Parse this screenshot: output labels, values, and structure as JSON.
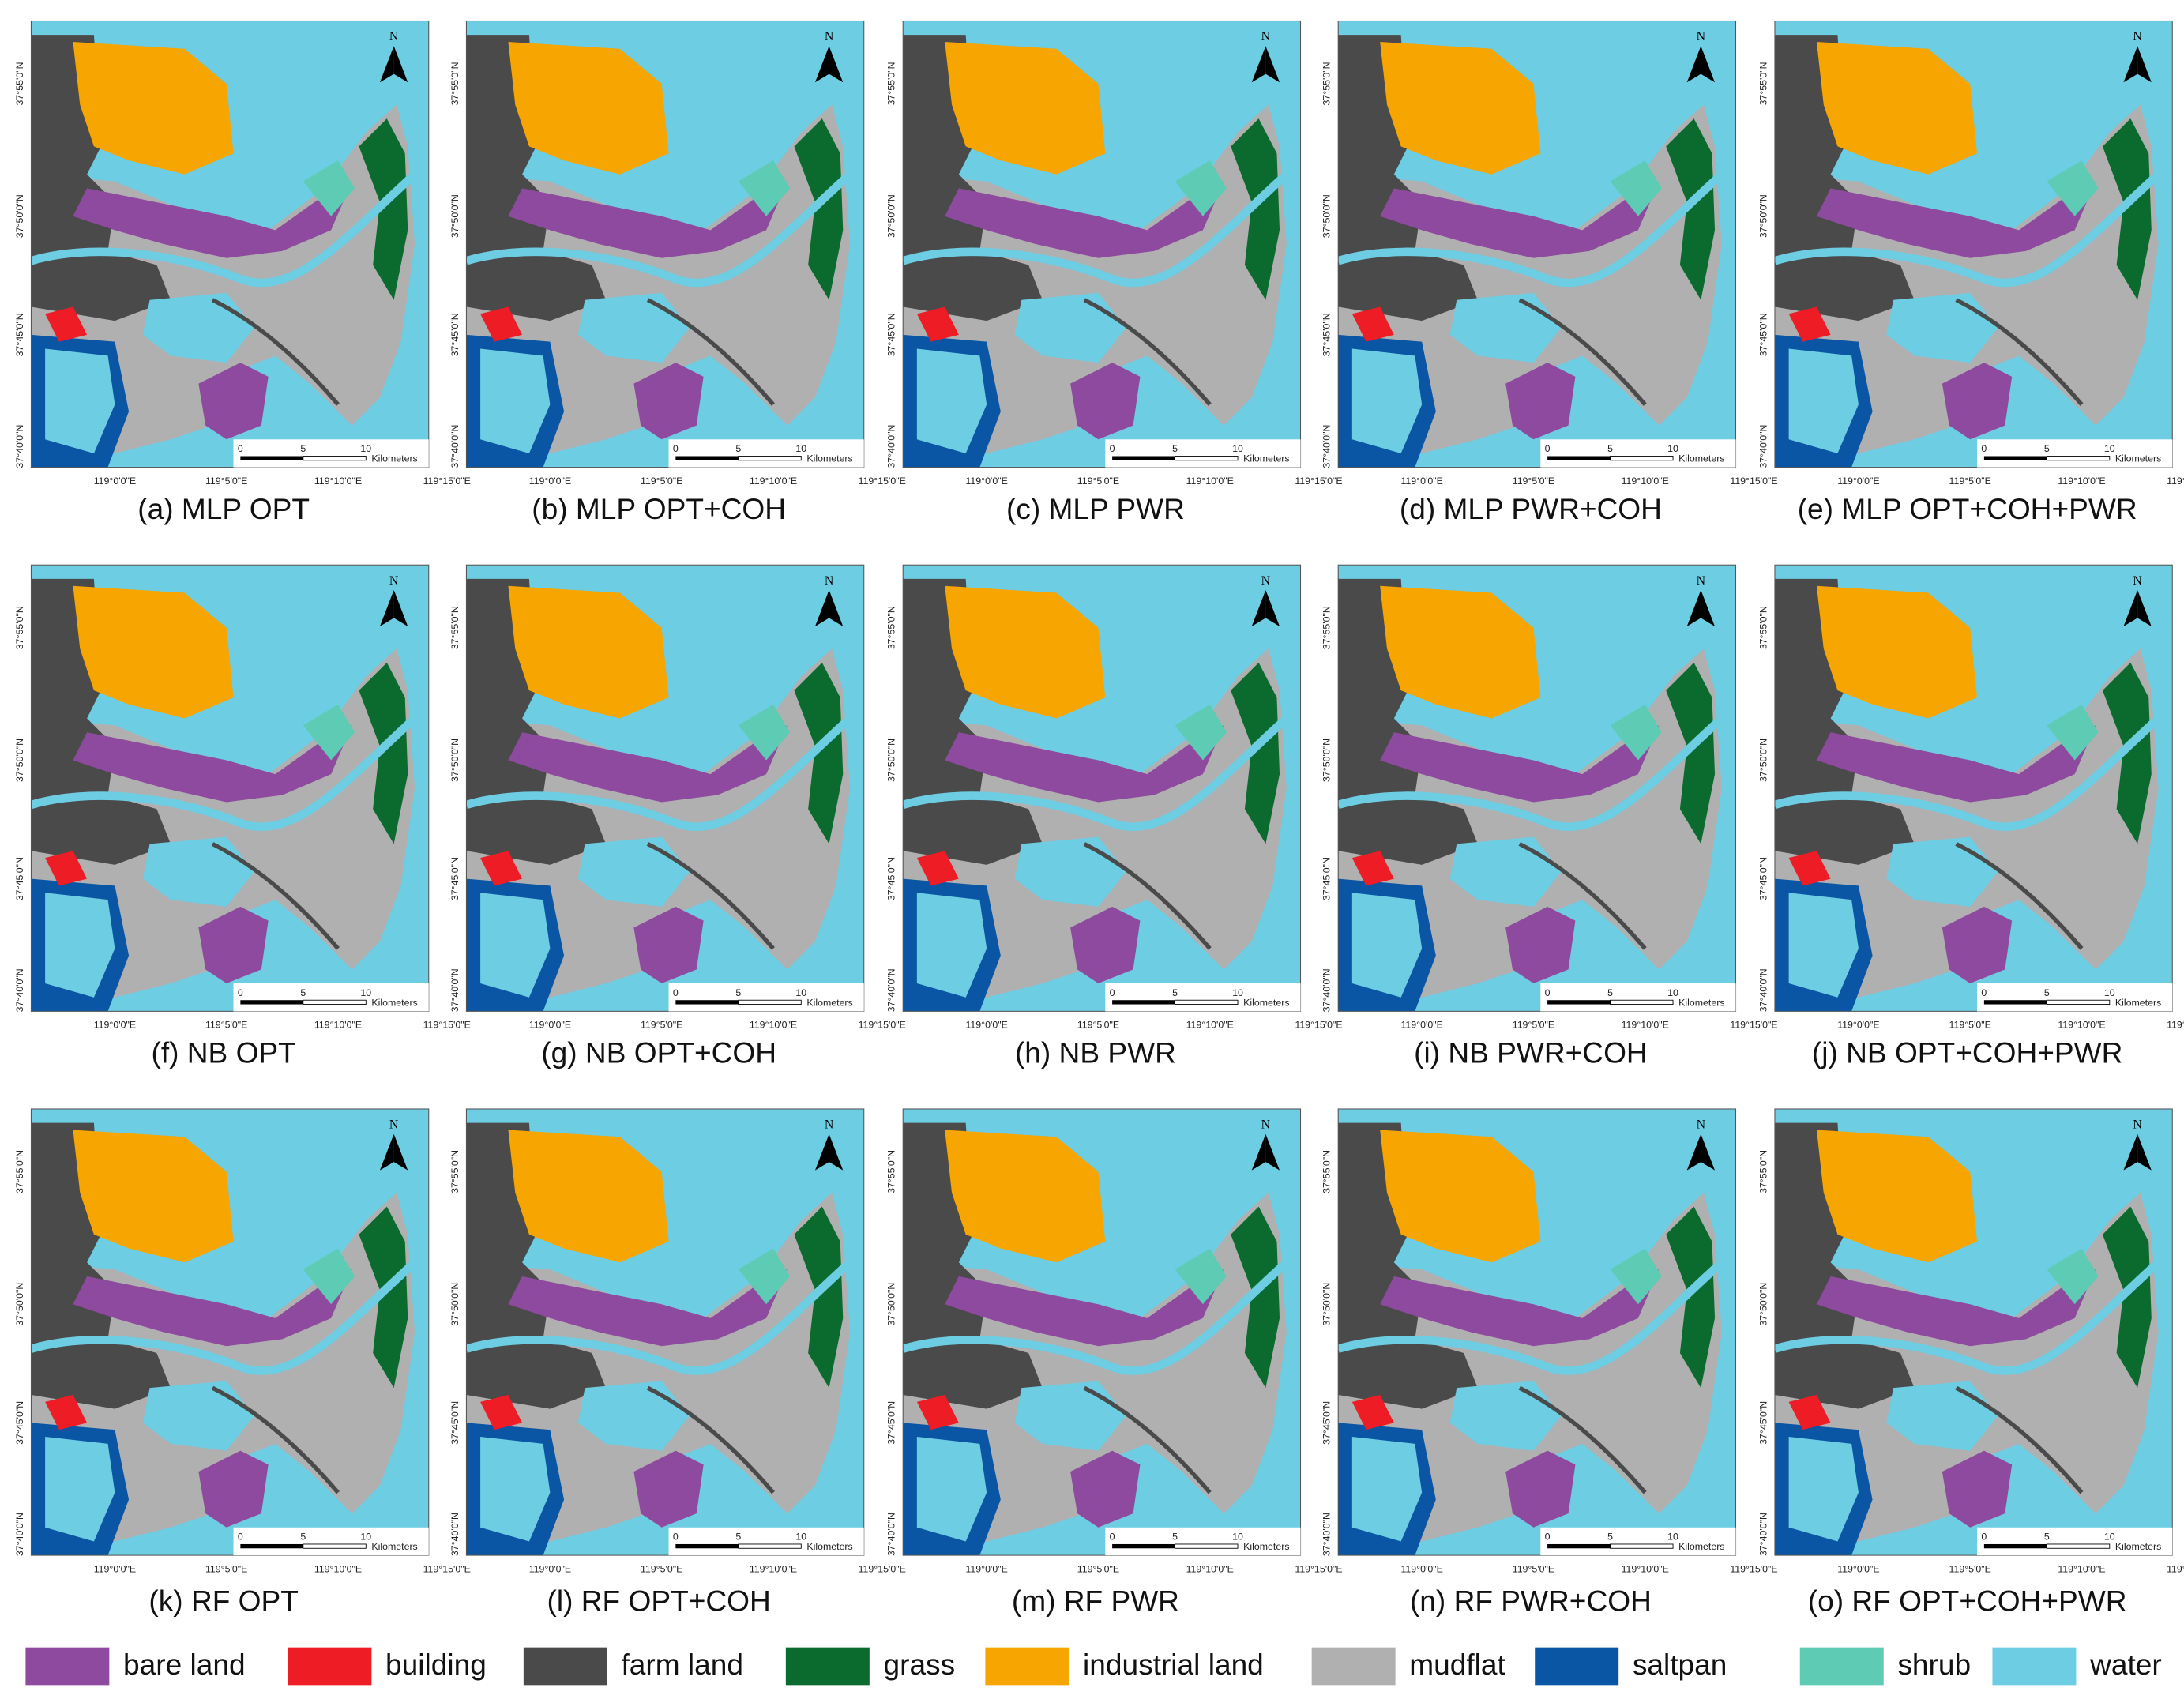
{
  "panels": [
    {
      "caption": "(a) MLP OPT"
    },
    {
      "caption": "(b) MLP OPT+COH"
    },
    {
      "caption": "(c) MLP PWR"
    },
    {
      "caption": "(d) MLP PWR+COH"
    },
    {
      "caption": "(e) MLP OPT+COH+PWR"
    },
    {
      "caption": "(f) NB OPT"
    },
    {
      "caption": "(g) NB OPT+COH"
    },
    {
      "caption": "(h) NB PWR"
    },
    {
      "caption": "(i) NB PWR+COH"
    },
    {
      "caption": "(j) NB OPT+COH+PWR"
    },
    {
      "caption": "(k) RF OPT"
    },
    {
      "caption": "(l) RF OPT+COH"
    },
    {
      "caption": "(m) RF PWR"
    },
    {
      "caption": "(n) RF PWR+COH"
    },
    {
      "caption": "(o) RF OPT+COH+PWR"
    }
  ],
  "map": {
    "north": "N",
    "lat_labels": [
      "37°55'0\"N",
      "37°50'0\"N",
      "37°45'0\"N",
      "37°40'0\"N"
    ],
    "lon_labels": [
      "119°0'0\"E",
      "119°5'0\"E",
      "119°10'0\"E",
      "119°15'0\"E"
    ],
    "scale_labels": [
      "0",
      "5",
      "10"
    ],
    "scale_unit": "Kilometers"
  },
  "legend": [
    {
      "label": "bare land",
      "color": "#8e4a9e"
    },
    {
      "label": "building",
      "color": "#ee1c25"
    },
    {
      "label": "farm land",
      "color": "#4a4a4a"
    },
    {
      "label": "grass",
      "color": "#0b6b2e"
    },
    {
      "label": "industrial land",
      "color": "#f7a500"
    },
    {
      "label": "mudflat",
      "color": "#b0b0b0"
    },
    {
      "label": "saltpan",
      "color": "#0b56a4"
    },
    {
      "label": "shrub",
      "color": "#5ecbb5"
    },
    {
      "label": "water",
      "color": "#6dcde3"
    }
  ]
}
